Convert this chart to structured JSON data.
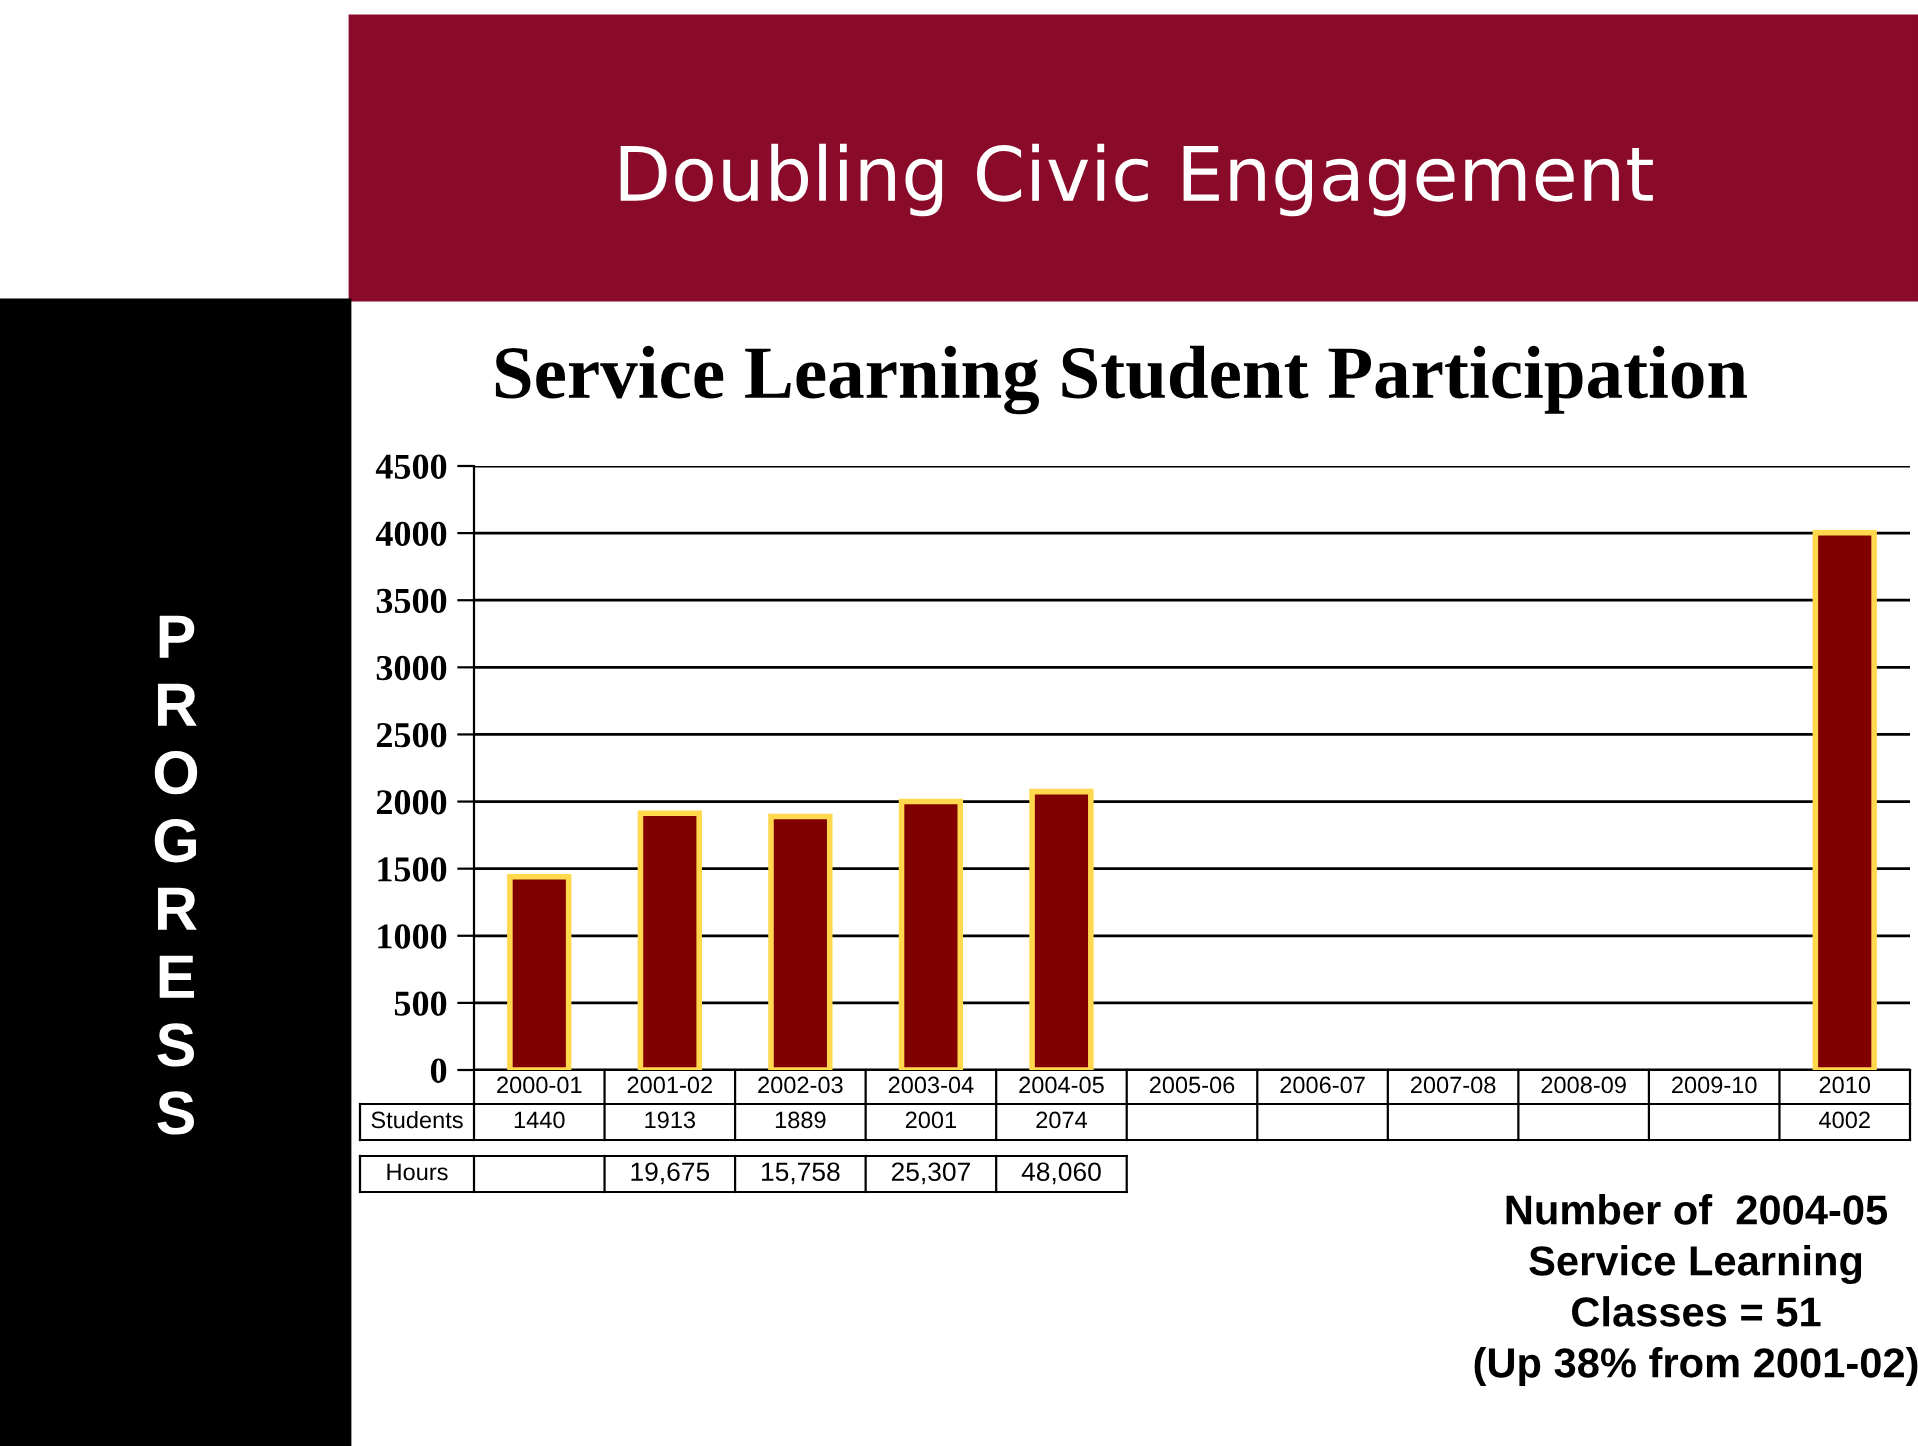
{
  "chart_data": {
    "type": "bar",
    "title": "Service Learning Student Participation",
    "subtitle": "Doubling Civic Engagement",
    "categories": [
      "2000-01",
      "2001-02",
      "2002-03",
      "2003-04",
      "2004-05",
      "2005-06",
      "2006-07",
      "2007-08",
      "2008-09",
      "2009-10",
      "2010"
    ],
    "series": [
      {
        "name": "Students",
        "color": "#800000",
        "values": [
          1440,
          1913,
          1889,
          2001,
          2074,
          null,
          null,
          null,
          null,
          null,
          4002
        ]
      }
    ],
    "ylim": [
      0,
      4500
    ],
    "yticks": [
      0,
      500,
      1000,
      1500,
      2000,
      2500,
      3000,
      3500,
      4000,
      4500
    ],
    "grid": "y",
    "data_labels": true,
    "legend": false,
    "annotations": [
      "PROGRESS",
      "Number of  2004-05\nService Learning\nClasses = 51\n(Up 38% from 2001-02)",
      "Hours",
      "19,675",
      "15,758",
      "25,307",
      "48,060"
    ]
  }
}
